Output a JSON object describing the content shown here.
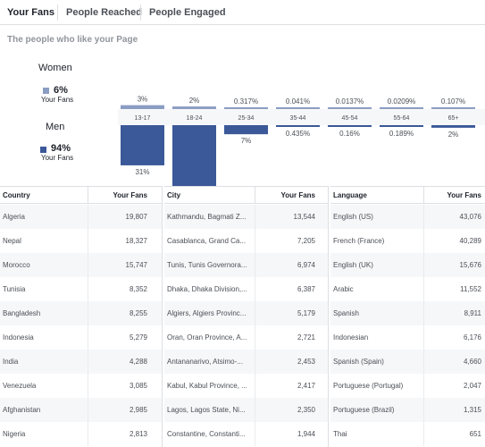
{
  "tabs": [
    {
      "label": "Your Fans",
      "active": true
    },
    {
      "label": "People Reached",
      "active": false
    },
    {
      "label": "People Engaged",
      "active": false
    }
  ],
  "subtitle": "The people who like your Page",
  "gender": {
    "women": {
      "label": "Women",
      "pct": "6%",
      "sub": "Your Fans",
      "color": "#8b9dc3"
    },
    "men": {
      "label": "Men",
      "pct": "94%",
      "sub": "Your Fans",
      "color": "#3b5998"
    }
  },
  "chart_data": {
    "type": "bar",
    "categories": [
      "13-17",
      "18-24",
      "25-34",
      "35-44",
      "45-54",
      "55-64",
      "65+"
    ],
    "series": [
      {
        "name": "Women",
        "values": [
          3,
          2,
          0.317,
          0.041,
          0.0137,
          0.0209,
          0.107
        ],
        "labels": [
          "3%",
          "2%",
          "0.317%",
          "0.041%",
          "0.0137%",
          "0.0209%",
          "0.107%"
        ]
      },
      {
        "name": "Men",
        "values": [
          31,
          53,
          7,
          0.435,
          0.16,
          0.189,
          2
        ],
        "labels": [
          "31%",
          "53%",
          "7%",
          "0.435%",
          "0.16%",
          "0.189%",
          "2%"
        ]
      }
    ],
    "colors": {
      "women": "#8b9dc3",
      "men": "#3b5998"
    }
  },
  "tables": {
    "country": {
      "header_name": "Country",
      "header_value": "Your Fans",
      "rows": [
        {
          "name": "Algeria",
          "value": "19,807"
        },
        {
          "name": "Nepal",
          "value": "18,327"
        },
        {
          "name": "Morocco",
          "value": "15,747"
        },
        {
          "name": "Tunisia",
          "value": "8,352"
        },
        {
          "name": "Bangladesh",
          "value": "8,255"
        },
        {
          "name": "Indonesia",
          "value": "5,279"
        },
        {
          "name": "India",
          "value": "4,288"
        },
        {
          "name": "Venezuela",
          "value": "3,085"
        },
        {
          "name": "Afghanistan",
          "value": "2,985"
        },
        {
          "name": "Nigeria",
          "value": "2,813"
        }
      ]
    },
    "city": {
      "header_name": "City",
      "header_value": "Your Fans",
      "rows": [
        {
          "name": "Kathmandu, Bagmati Z...",
          "value": "13,544"
        },
        {
          "name": "Casablanca, Grand Ca...",
          "value": "7,205"
        },
        {
          "name": "Tunis, Tunis Governora...",
          "value": "6,974"
        },
        {
          "name": "Dhaka, Dhaka Division,...",
          "value": "6,387"
        },
        {
          "name": "Algiers, Algiers Provinc...",
          "value": "5,179"
        },
        {
          "name": "Oran, Oran Province, A...",
          "value": "2,721"
        },
        {
          "name": "Antananarivo, Atsimo-...",
          "value": "2,453"
        },
        {
          "name": "Kabul, Kabul Province, ...",
          "value": "2,417"
        },
        {
          "name": "Lagos, Lagos State, Ni...",
          "value": "2,350"
        },
        {
          "name": "Constantine, Constanti...",
          "value": "1,944"
        }
      ]
    },
    "language": {
      "header_name": "Language",
      "header_value": "Your Fans",
      "rows": [
        {
          "name": "English (US)",
          "value": "43,076"
        },
        {
          "name": "French (France)",
          "value": "40,289"
        },
        {
          "name": "English (UK)",
          "value": "15,676"
        },
        {
          "name": "Arabic",
          "value": "11,552"
        },
        {
          "name": "Spanish",
          "value": "8,911"
        },
        {
          "name": "Indonesian",
          "value": "6,176"
        },
        {
          "name": "Spanish (Spain)",
          "value": "4,660"
        },
        {
          "name": "Portuguese (Portugal)",
          "value": "2,047"
        },
        {
          "name": "Portuguese (Brazil)",
          "value": "1,315"
        },
        {
          "name": "Thai",
          "value": "651"
        }
      ]
    }
  }
}
